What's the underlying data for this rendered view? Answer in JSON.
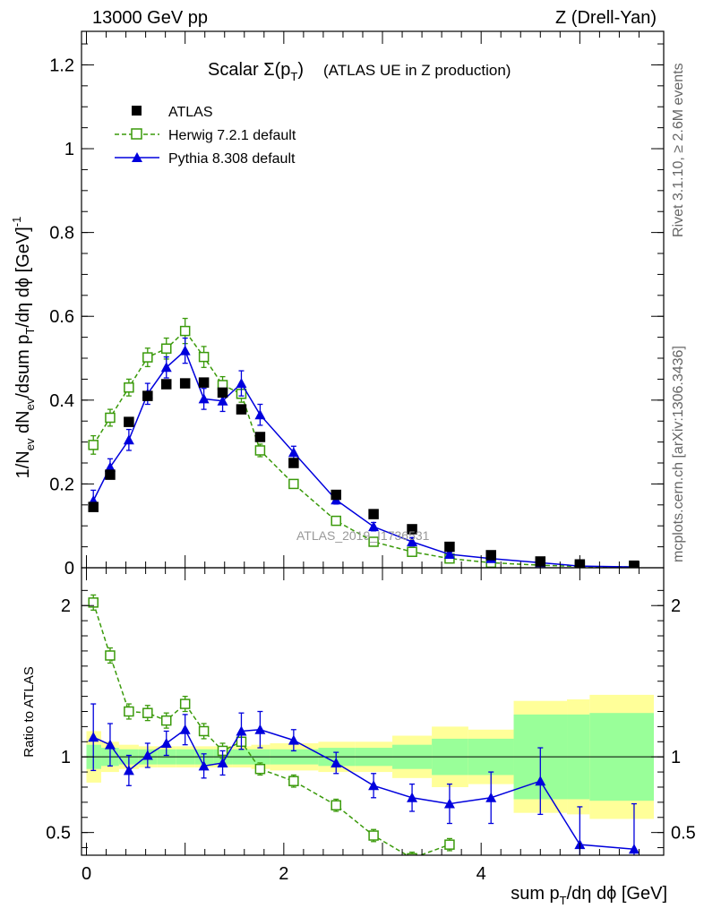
{
  "header": {
    "left": "13000 GeV pp",
    "right": "Z (Drell-Yan)"
  },
  "plot_title": {
    "main": "Scalar Σ(p",
    "sub": "T",
    "close": ")",
    "detail": "(ATLAS UE in Z production)"
  },
  "side_text": {
    "rivet": "Rivet 3.1.10, ≥ 2.6M events",
    "mcplots": "mcplots.cern.ch [arXiv:1306.3436]"
  },
  "watermark": "ATLAS_2019_I1736531",
  "legend": {
    "atlas": "ATLAS",
    "herwig": "Herwig 7.2.1 default",
    "pythia": "Pythia 8.308 default"
  },
  "axes": {
    "ylabel_main": "1/N_ev dN_ev/dsum p_T/dη dϕ [GeV]^-1",
    "ylabel_ratio": "Ratio to ATLAS",
    "xlabel": "sum p_T/dη dϕ [GeV]"
  },
  "colors": {
    "atlas": "#000000",
    "herwig": "#3a9a0a",
    "pythia": "#0000dd",
    "band_inner": "#99ff99",
    "band_outer": "#ffff99"
  },
  "chart_data": {
    "type": "scatter",
    "x_range": [
      -0.05,
      5.85
    ],
    "main_ylim": [
      0,
      1.28
    ],
    "ratio_ylim": [
      0.35,
      2.25
    ],
    "main_yticks": [
      0,
      0.2,
      0.4,
      0.6,
      0.8,
      1,
      1.2
    ],
    "ratio_yticks": [
      0.5,
      1,
      2
    ],
    "xticks": [
      0,
      2,
      4
    ],
    "series": [
      {
        "name": "ATLAS",
        "x": [
          0.07,
          0.24,
          0.43,
          0.62,
          0.81,
          1.0,
          1.19,
          1.38,
          1.57,
          1.76,
          2.1,
          2.53,
          2.91,
          3.3,
          3.68,
          4.1,
          4.6,
          5.0,
          5.55
        ],
        "y": [
          0.145,
          0.222,
          0.348,
          0.41,
          0.438,
          0.44,
          0.442,
          0.418,
          0.378,
          0.312,
          0.25,
          0.174,
          0.128,
          0.092,
          0.05,
          0.03,
          0.015,
          0.008,
          0.005
        ]
      },
      {
        "name": "Herwig 7.2.1 default",
        "x": [
          0.07,
          0.24,
          0.43,
          0.62,
          0.81,
          1.0,
          1.19,
          1.38,
          1.57,
          1.76,
          2.1,
          2.53,
          2.91,
          3.3,
          3.68,
          4.1,
          4.6,
          5.0,
          5.55
        ],
        "y": [
          0.293,
          0.358,
          0.43,
          0.502,
          0.523,
          0.565,
          0.503,
          0.436,
          0.415,
          0.28,
          0.2,
          0.112,
          0.062,
          0.038,
          0.022,
          0.012,
          0.006,
          0.003,
          0.002
        ],
        "yerr": [
          0.022,
          0.02,
          0.02,
          0.022,
          0.025,
          0.03,
          0.025,
          0.02,
          0.02,
          0.015,
          0.01,
          0.008,
          0.005,
          0.004,
          0.003,
          0.002,
          0.001,
          0.001,
          0.001
        ],
        "ratio_x": [
          0.07,
          0.24,
          0.43,
          0.62,
          0.81,
          1.0,
          1.19,
          1.38,
          1.57,
          1.76,
          2.1,
          2.53,
          2.91,
          3.3,
          3.68
        ],
        "ratio_y": [
          2.02,
          1.67,
          1.3,
          1.29,
          1.24,
          1.35,
          1.17,
          1.04,
          1.1,
          0.92,
          0.84,
          0.68,
          0.48,
          0.33,
          0.42
        ],
        "ratio_err": [
          0.05,
          0.05,
          0.05,
          0.05,
          0.05,
          0.05,
          0.05,
          0.05,
          0.05,
          0.04,
          0.04,
          0.04,
          0.04,
          0.04,
          0.04
        ]
      },
      {
        "name": "Pythia 8.308 default",
        "x": [
          0.07,
          0.24,
          0.43,
          0.62,
          0.81,
          1.0,
          1.19,
          1.38,
          1.57,
          1.76,
          2.1,
          2.53,
          2.91,
          3.3,
          3.68,
          4.1,
          4.6,
          5.0,
          5.55
        ],
        "y": [
          0.16,
          0.24,
          0.305,
          0.415,
          0.478,
          0.518,
          0.403,
          0.398,
          0.44,
          0.365,
          0.275,
          0.162,
          0.098,
          0.062,
          0.032,
          0.022,
          0.012,
          0.004,
          0.002
        ],
        "yerr": [
          0.025,
          0.02,
          0.025,
          0.025,
          0.025,
          0.03,
          0.025,
          0.025,
          0.03,
          0.025,
          0.015,
          0.01,
          0.01,
          0.01,
          0.005,
          0.005,
          0.003,
          0.002,
          0.001
        ],
        "ratio_y": [
          1.13,
          1.08,
          0.91,
          1.01,
          1.09,
          1.18,
          0.94,
          0.96,
          1.17,
          1.18,
          1.11,
          0.96,
          0.81,
          0.73,
          0.69,
          0.73,
          0.84,
          0.42,
          0.39
        ],
        "ratio_err": [
          0.22,
          0.14,
          0.1,
          0.08,
          0.08,
          0.1,
          0.08,
          0.08,
          0.12,
          0.12,
          0.07,
          0.07,
          0.08,
          0.09,
          0.13,
          0.17,
          0.22,
          0.25,
          0.3
        ]
      }
    ],
    "uncertainty_bands": {
      "bins": [
        [
          0.0,
          0.15
        ],
        [
          0.15,
          0.33
        ],
        [
          0.33,
          0.53
        ],
        [
          0.53,
          0.72
        ],
        [
          0.72,
          0.91
        ],
        [
          0.91,
          1.1
        ],
        [
          1.1,
          1.29
        ],
        [
          1.29,
          1.48
        ],
        [
          1.48,
          1.67
        ],
        [
          1.67,
          1.86
        ],
        [
          1.86,
          2.35
        ],
        [
          2.35,
          2.72
        ],
        [
          2.72,
          3.1
        ],
        [
          3.1,
          3.5
        ],
        [
          3.5,
          3.87
        ],
        [
          3.87,
          4.33
        ],
        [
          4.33,
          4.87
        ],
        [
          4.87,
          5.1
        ],
        [
          5.1,
          5.75
        ]
      ],
      "inner": [
        0.08,
        0.06,
        0.05,
        0.05,
        0.05,
        0.05,
        0.05,
        0.05,
        0.05,
        0.05,
        0.05,
        0.06,
        0.06,
        0.08,
        0.12,
        0.12,
        0.28,
        0.28,
        0.29
      ],
      "outer": [
        0.17,
        0.1,
        0.08,
        0.07,
        0.07,
        0.07,
        0.07,
        0.07,
        0.07,
        0.08,
        0.09,
        0.1,
        0.1,
        0.14,
        0.2,
        0.18,
        0.37,
        0.38,
        0.41
      ]
    }
  }
}
